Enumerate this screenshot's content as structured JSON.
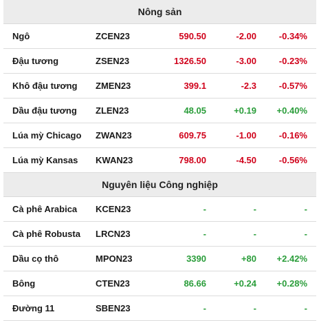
{
  "colors": {
    "negative": "#d0021b",
    "positive": "#2a9d3a",
    "header_bg": "#ececec"
  },
  "sections": [
    {
      "title": "Nông sản",
      "rows": [
        {
          "name": "Ngô",
          "code": "ZCEN23",
          "price": "590.50",
          "change": "-2.00",
          "pct": "-0.34%",
          "dir": "neg"
        },
        {
          "name": "Đậu tương",
          "code": "ZSEN23",
          "price": "1326.50",
          "change": "-3.00",
          "pct": "-0.23%",
          "dir": "neg"
        },
        {
          "name": "Khô đậu tương",
          "code": "ZMEN23",
          "price": "399.1",
          "change": "-2.3",
          "pct": "-0.57%",
          "dir": "neg"
        },
        {
          "name": "Dầu đậu tương",
          "code": "ZLEN23",
          "price": "48.05",
          "change": "+0.19",
          "pct": "+0.40%",
          "dir": "pos"
        },
        {
          "name": "Lúa mỳ Chicago",
          "code": "ZWAN23",
          "price": "609.75",
          "change": "-1.00",
          "pct": "-0.16%",
          "dir": "neg"
        },
        {
          "name": "Lúa mỳ Kansas",
          "code": "KWAN23",
          "price": "798.00",
          "change": "-4.50",
          "pct": "-0.56%",
          "dir": "neg"
        }
      ]
    },
    {
      "title": "Nguyên liệu Công nghiệp",
      "rows": [
        {
          "name": "Cà phê Arabica",
          "code": "KCEN23",
          "price": "-",
          "change": "-",
          "pct": "-",
          "dir": "na"
        },
        {
          "name": "Cà phê Robusta",
          "code": "LRCN23",
          "price": "-",
          "change": "-",
          "pct": "-",
          "dir": "na"
        },
        {
          "name": "Dầu cọ thô",
          "code": "MPON23",
          "price": "3390",
          "change": "+80",
          "pct": "+2.42%",
          "dir": "pos"
        },
        {
          "name": "Bông",
          "code": "CTEN23",
          "price": "86.66",
          "change": "+0.24",
          "pct": "+0.28%",
          "dir": "pos"
        },
        {
          "name": "Đường 11",
          "code": "SBEN23",
          "price": "-",
          "change": "-",
          "pct": "-",
          "dir": "na"
        }
      ]
    }
  ]
}
